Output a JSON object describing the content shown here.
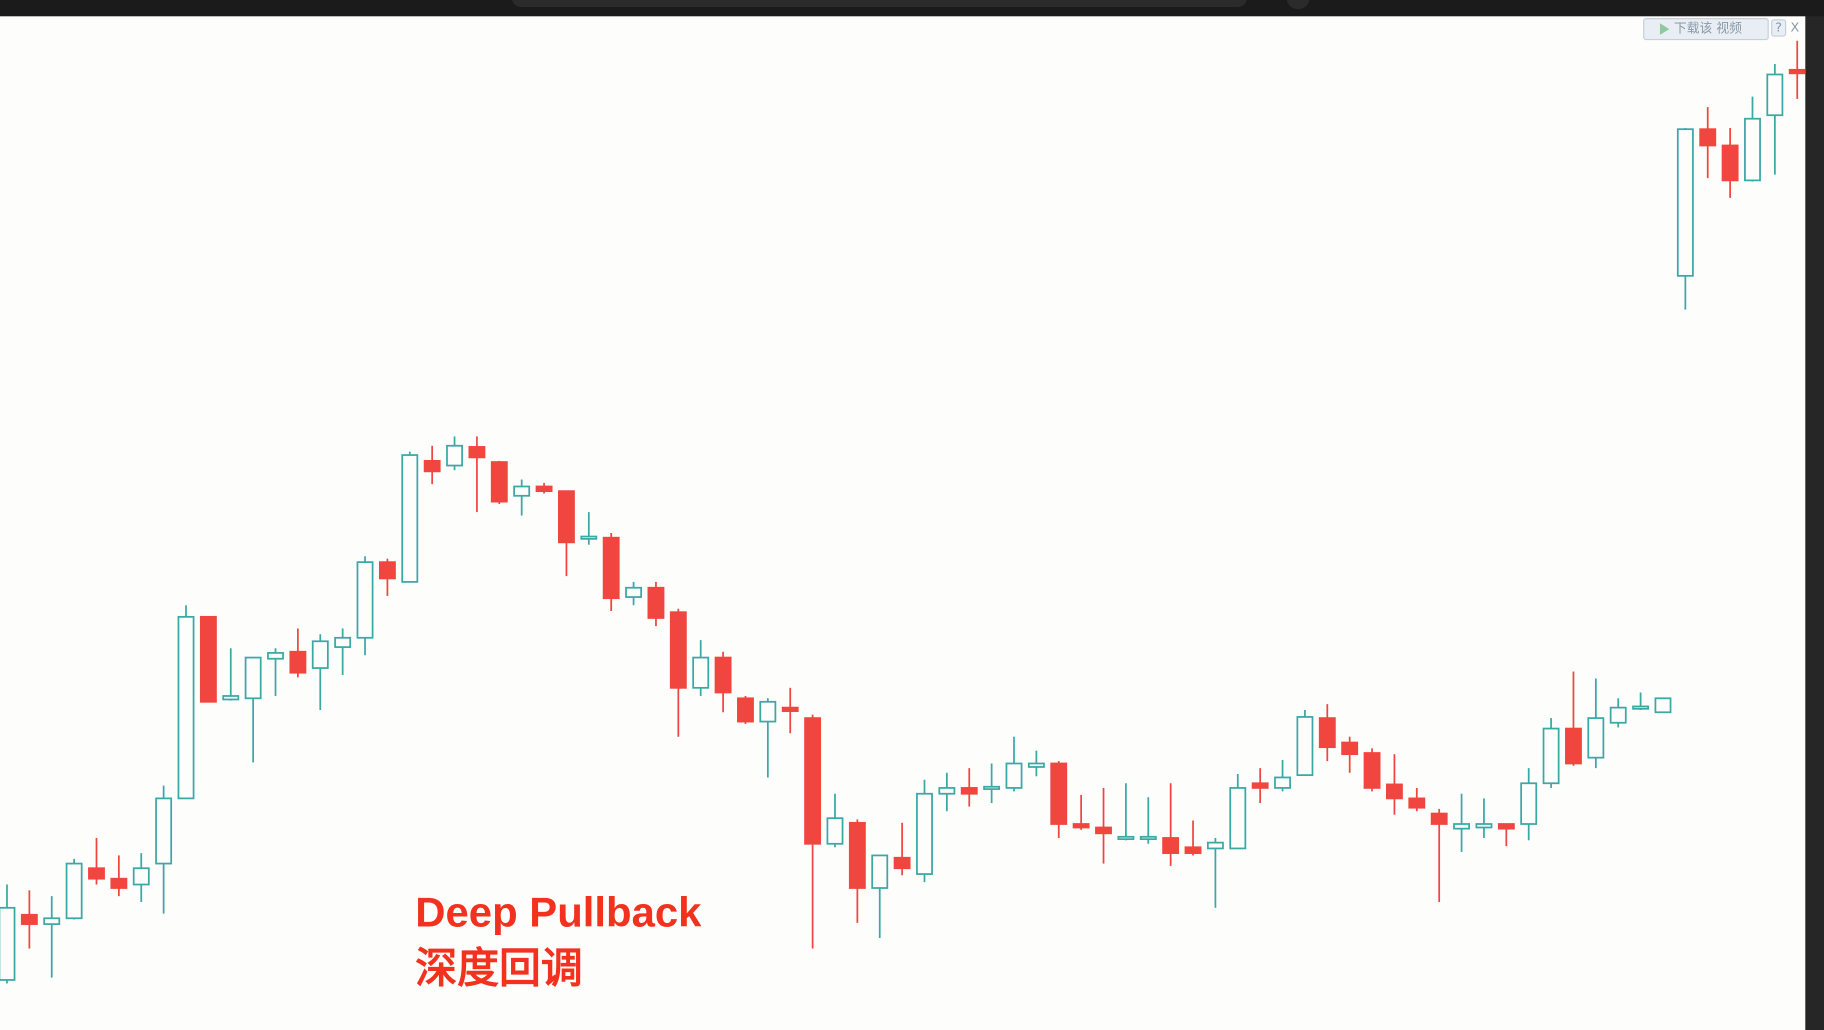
{
  "chart_data": {
    "type": "candlestick",
    "up_color": "#3aa8a4",
    "down_color": "#f1463f",
    "ylim": [
      0,
      871
    ],
    "open": [
      43,
      99,
      91,
      96,
      139,
      130,
      125,
      143,
      199,
      355,
      284,
      285,
      319,
      325,
      311,
      329,
      337,
      402,
      385,
      489,
      485,
      501,
      488,
      459,
      467,
      463,
      422,
      423,
      372,
      380,
      359,
      294,
      320,
      285,
      265,
      277,
      268,
      160,
      178,
      122,
      148,
      134,
      203,
      208,
      207,
      208,
      226,
      229,
      177,
      174,
      164,
      164,
      165,
      157,
      156,
      156,
      212,
      208,
      219,
      268,
      247,
      238,
      211,
      199,
      186,
      173,
      174,
      177,
      177,
      212,
      259,
      234,
      264,
      276,
      273,
      648,
      774,
      760,
      730,
      786,
      825
    ],
    "high": [
      125,
      120,
      115,
      147,
      165,
      150,
      152,
      210,
      365,
      355,
      328,
      320,
      328,
      345,
      340,
      345,
      407,
      405,
      497,
      502,
      510,
      510,
      489,
      473,
      470,
      463,
      445,
      427,
      385,
      385,
      362,
      335,
      325,
      287,
      285,
      294,
      271,
      203,
      181,
      150,
      178,
      215,
      221,
      225,
      229,
      252,
      240,
      231,
      202,
      208,
      212,
      200,
      212,
      180,
      165,
      220,
      225,
      232,
      275,
      280,
      252,
      242,
      237,
      208,
      190,
      203,
      199,
      177,
      225,
      268,
      308,
      302,
      285,
      290,
      285,
      775,
      793,
      775,
      802,
      830,
      850
    ],
    "low": [
      40,
      70,
      45,
      95,
      125,
      115,
      110,
      100,
      199,
      282,
      283,
      230,
      287,
      303,
      275,
      305,
      322,
      373,
      385,
      469,
      481,
      445,
      452,
      442,
      461,
      390,
      417,
      360,
      365,
      347,
      252,
      287,
      273,
      263,
      217,
      255,
      70,
      157,
      92,
      79,
      133,
      127,
      188,
      192,
      195,
      205,
      218,
      165,
      172,
      143,
      163,
      160,
      141,
      150,
      105,
      156,
      195,
      205,
      219,
      231,
      221,
      205,
      185,
      188,
      110,
      153,
      165,
      158,
      163,
      208,
      227,
      225,
      260,
      275,
      273,
      619,
      732,
      715,
      729,
      735,
      800
    ],
    "close": [
      105,
      91,
      96,
      143,
      130,
      122,
      139,
      199,
      355,
      282,
      287,
      320,
      324,
      307,
      334,
      337,
      402,
      388,
      494,
      480,
      502,
      492,
      454,
      467,
      463,
      419,
      424,
      371,
      380,
      354,
      294,
      320,
      290,
      265,
      282,
      274,
      160,
      182,
      122,
      150,
      139,
      203,
      208,
      203,
      209,
      229,
      229,
      177,
      174,
      169,
      166,
      166,
      152,
      152,
      161,
      208,
      208,
      217,
      269,
      243,
      237,
      208,
      199,
      191,
      177,
      177,
      177,
      173,
      212,
      259,
      229,
      268,
      277,
      278,
      285,
      774,
      760,
      730,
      783,
      821,
      822
    ],
    "annotations": [
      "Deep Pullback",
      "深度回调"
    ]
  },
  "toolbar": {
    "download": "下载该 视频",
    "help": "?",
    "close": "X"
  }
}
